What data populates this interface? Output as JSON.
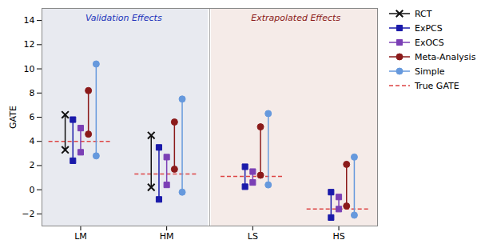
{
  "chart_data": {
    "type": "interval",
    "categories": [
      "LM",
      "HM",
      "LS",
      "HS"
    ],
    "series": [
      {
        "name": "RCT",
        "color": "#111111",
        "marker": "x",
        "line_style": "solid",
        "values": [
          [
            6.2,
            3.3
          ],
          [
            4.5,
            0.2
          ],
          null,
          null
        ]
      },
      {
        "name": "ExPCS",
        "color": "#1a1aaa",
        "marker": "square",
        "line_style": "solid",
        "values": [
          [
            5.8,
            2.4
          ],
          [
            3.5,
            -0.8
          ],
          [
            1.9,
            0.25
          ],
          [
            -0.2,
            -2.3
          ]
        ]
      },
      {
        "name": "ExOCS",
        "color": "#7b3fb5",
        "marker": "square",
        "line_style": "solid",
        "values": [
          [
            5.1,
            3.1
          ],
          [
            2.7,
            0.4
          ],
          [
            1.5,
            0.6
          ],
          [
            -0.6,
            -1.6
          ]
        ]
      },
      {
        "name": "Meta-Analysis",
        "color": "#8b1a1a",
        "marker": "circle",
        "line_style": "solid",
        "values": [
          [
            8.2,
            4.6
          ],
          [
            5.6,
            1.7
          ],
          [
            5.2,
            1.2
          ],
          [
            2.1,
            -1.35
          ]
        ]
      },
      {
        "name": "Simple",
        "color": "#6699dd",
        "marker": "circle",
        "line_style": "solid",
        "values": [
          [
            10.4,
            2.8
          ],
          [
            7.5,
            -0.2
          ],
          [
            6.3,
            0.4
          ],
          [
            2.7,
            -2.1
          ]
        ]
      },
      {
        "name": "True GATE",
        "type": "line",
        "color": "#dd4444",
        "line_style": "dashed",
        "values": [
          4.0,
          1.3,
          1.1,
          -1.6
        ]
      }
    ],
    "annotations": [
      {
        "text": "Validation Effects",
        "color": "#2233bb",
        "background": "#e8eaf0",
        "categories": [
          "LM",
          "HM"
        ]
      },
      {
        "text": "Extrapolated Effects",
        "color": "#8b1a1a",
        "background": "#f5ebe8",
        "categories": [
          "LS",
          "HS"
        ]
      }
    ],
    "ylabel": "GATE",
    "ylim": [
      -3,
      15
    ],
    "yticks": [
      -2,
      0,
      2,
      4,
      6,
      8,
      10,
      12,
      14
    ],
    "grid": false,
    "legend": "right"
  }
}
